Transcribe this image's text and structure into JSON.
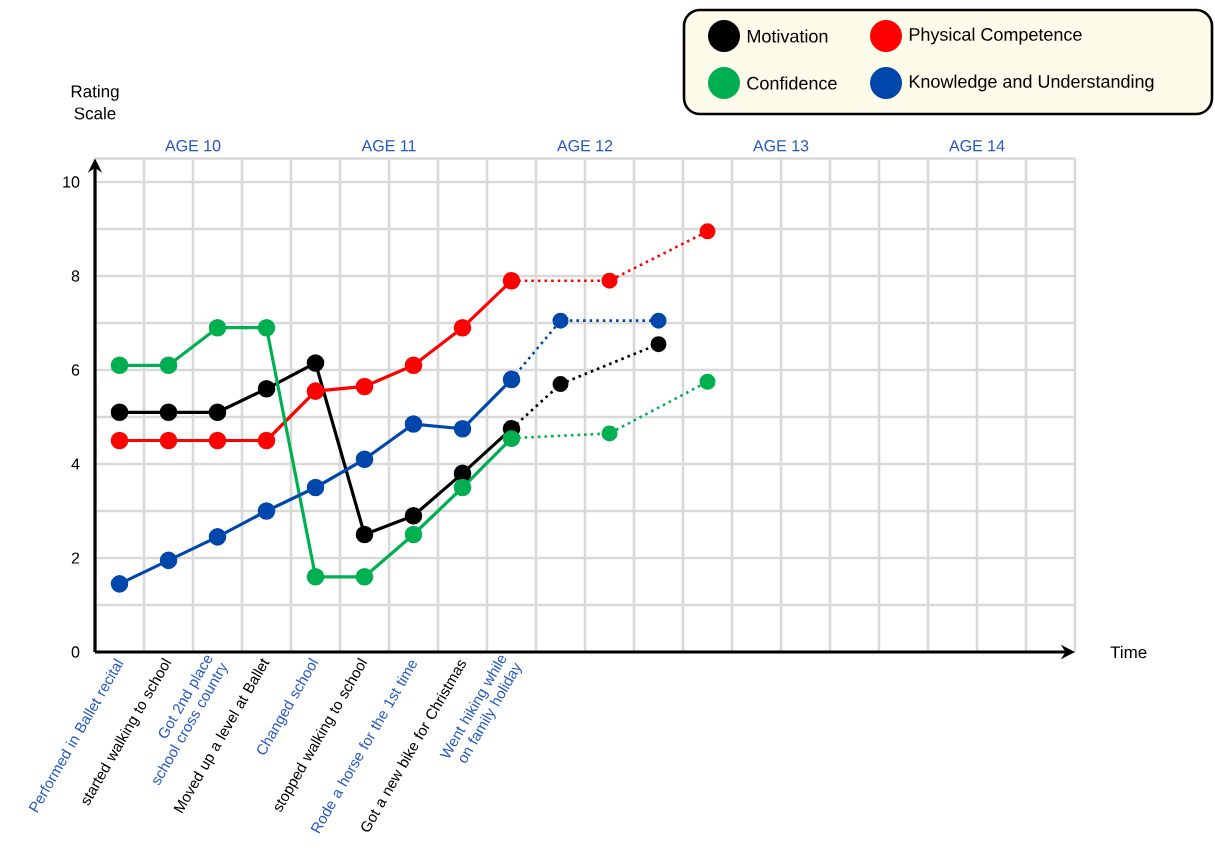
{
  "chart_data": {
    "type": "line",
    "xlabel": "Time",
    "ylabel": "Rating Scale",
    "ylim": [
      0,
      10.5
    ],
    "categories": [
      "Performed in Ballet recital",
      "started walking to school",
      "Got 2nd place school cross country",
      "Moved up a level at Ballet",
      "Changed school",
      "stopped walking to school",
      "Rode a horse for the 1st time",
      "Got a new bike for Christmas",
      "Went hiking while on family holiday",
      null,
      null,
      null,
      null,
      null,
      null,
      null,
      null,
      null,
      null,
      null
    ],
    "yticks": [
      0,
      {
        "value": 1,
        "label": null
      },
      2,
      {
        "value": 3,
        "label": null
      },
      4,
      {
        "value": 5,
        "label": null
      },
      6,
      {
        "value": 7,
        "label": null
      },
      8,
      {
        "value": 9,
        "label": null
      },
      10,
      {
        "value": 10.5,
        "label": null
      }
    ],
    "grid": true,
    "legend": "top right",
    "marker": "circle",
    "series": [
      {
        "name": "Motivation",
        "color": "#000000",
        "line_style": "solid",
        "values": [
          5.1,
          5.1,
          5.1,
          5.6,
          6.15,
          2.5,
          2.9,
          3.8,
          4.75,
          null,
          null,
          null,
          null,
          null,
          null,
          null,
          null,
          null,
          null,
          null
        ]
      },
      {
        "name": "Physical Competence",
        "color": "#ff0000",
        "line_style": "solid",
        "values": [
          4.5,
          4.5,
          4.5,
          4.5,
          5.55,
          5.65,
          6.1,
          6.9,
          7.9,
          null,
          null,
          null,
          null,
          null,
          null,
          null,
          null,
          null,
          null,
          null
        ]
      },
      {
        "name": "Confidence",
        "color": "#00b050",
        "line_style": "solid",
        "values": [
          6.1,
          6.1,
          6.9,
          6.9,
          1.6,
          1.6,
          2.5,
          3.5,
          4.55,
          null,
          null,
          null,
          null,
          null,
          null,
          null,
          null,
          null,
          null,
          null
        ]
      },
      {
        "name": "Knowledge and Understanding",
        "color": "#0047ab",
        "line_style": "solid",
        "values": [
          1.45,
          1.95,
          2.45,
          3.0,
          3.5,
          4.1,
          4.85,
          4.75,
          5.8,
          null,
          null,
          null,
          null,
          null,
          null,
          null,
          null,
          null,
          null,
          null
        ]
      },
      {
        "color": "#000000",
        "line_style": "dotted",
        "values": [
          null,
          null,
          null,
          null,
          null,
          null,
          null,
          null,
          4.75,
          5.7,
          null,
          6.55,
          null,
          null,
          null,
          null,
          null,
          null,
          null,
          null
        ]
      },
      {
        "color": "#ff0000",
        "line_style": "dotted",
        "values": [
          null,
          null,
          null,
          null,
          null,
          null,
          null,
          null,
          7.9,
          null,
          7.9,
          null,
          8.95,
          null,
          null,
          null,
          null,
          null,
          null,
          null
        ]
      },
      {
        "color": "#00b050",
        "line_style": "dotted",
        "values": [
          null,
          null,
          null,
          null,
          null,
          null,
          null,
          null,
          4.55,
          null,
          4.65,
          null,
          5.75,
          null,
          null,
          null,
          null,
          null,
          null,
          null
        ]
      },
      {
        "color": "#0047ab",
        "line_style": "dotted",
        "values": [
          null,
          null,
          null,
          null,
          null,
          null,
          null,
          null,
          5.8,
          7.05,
          null,
          7.05,
          null,
          null,
          null,
          null,
          null,
          null,
          null,
          null
        ]
      }
    ],
    "annotations": [
      "AGE 10",
      "AGE 11",
      "AGE 12",
      "AGE 13",
      "AGE 14"
    ]
  }
}
